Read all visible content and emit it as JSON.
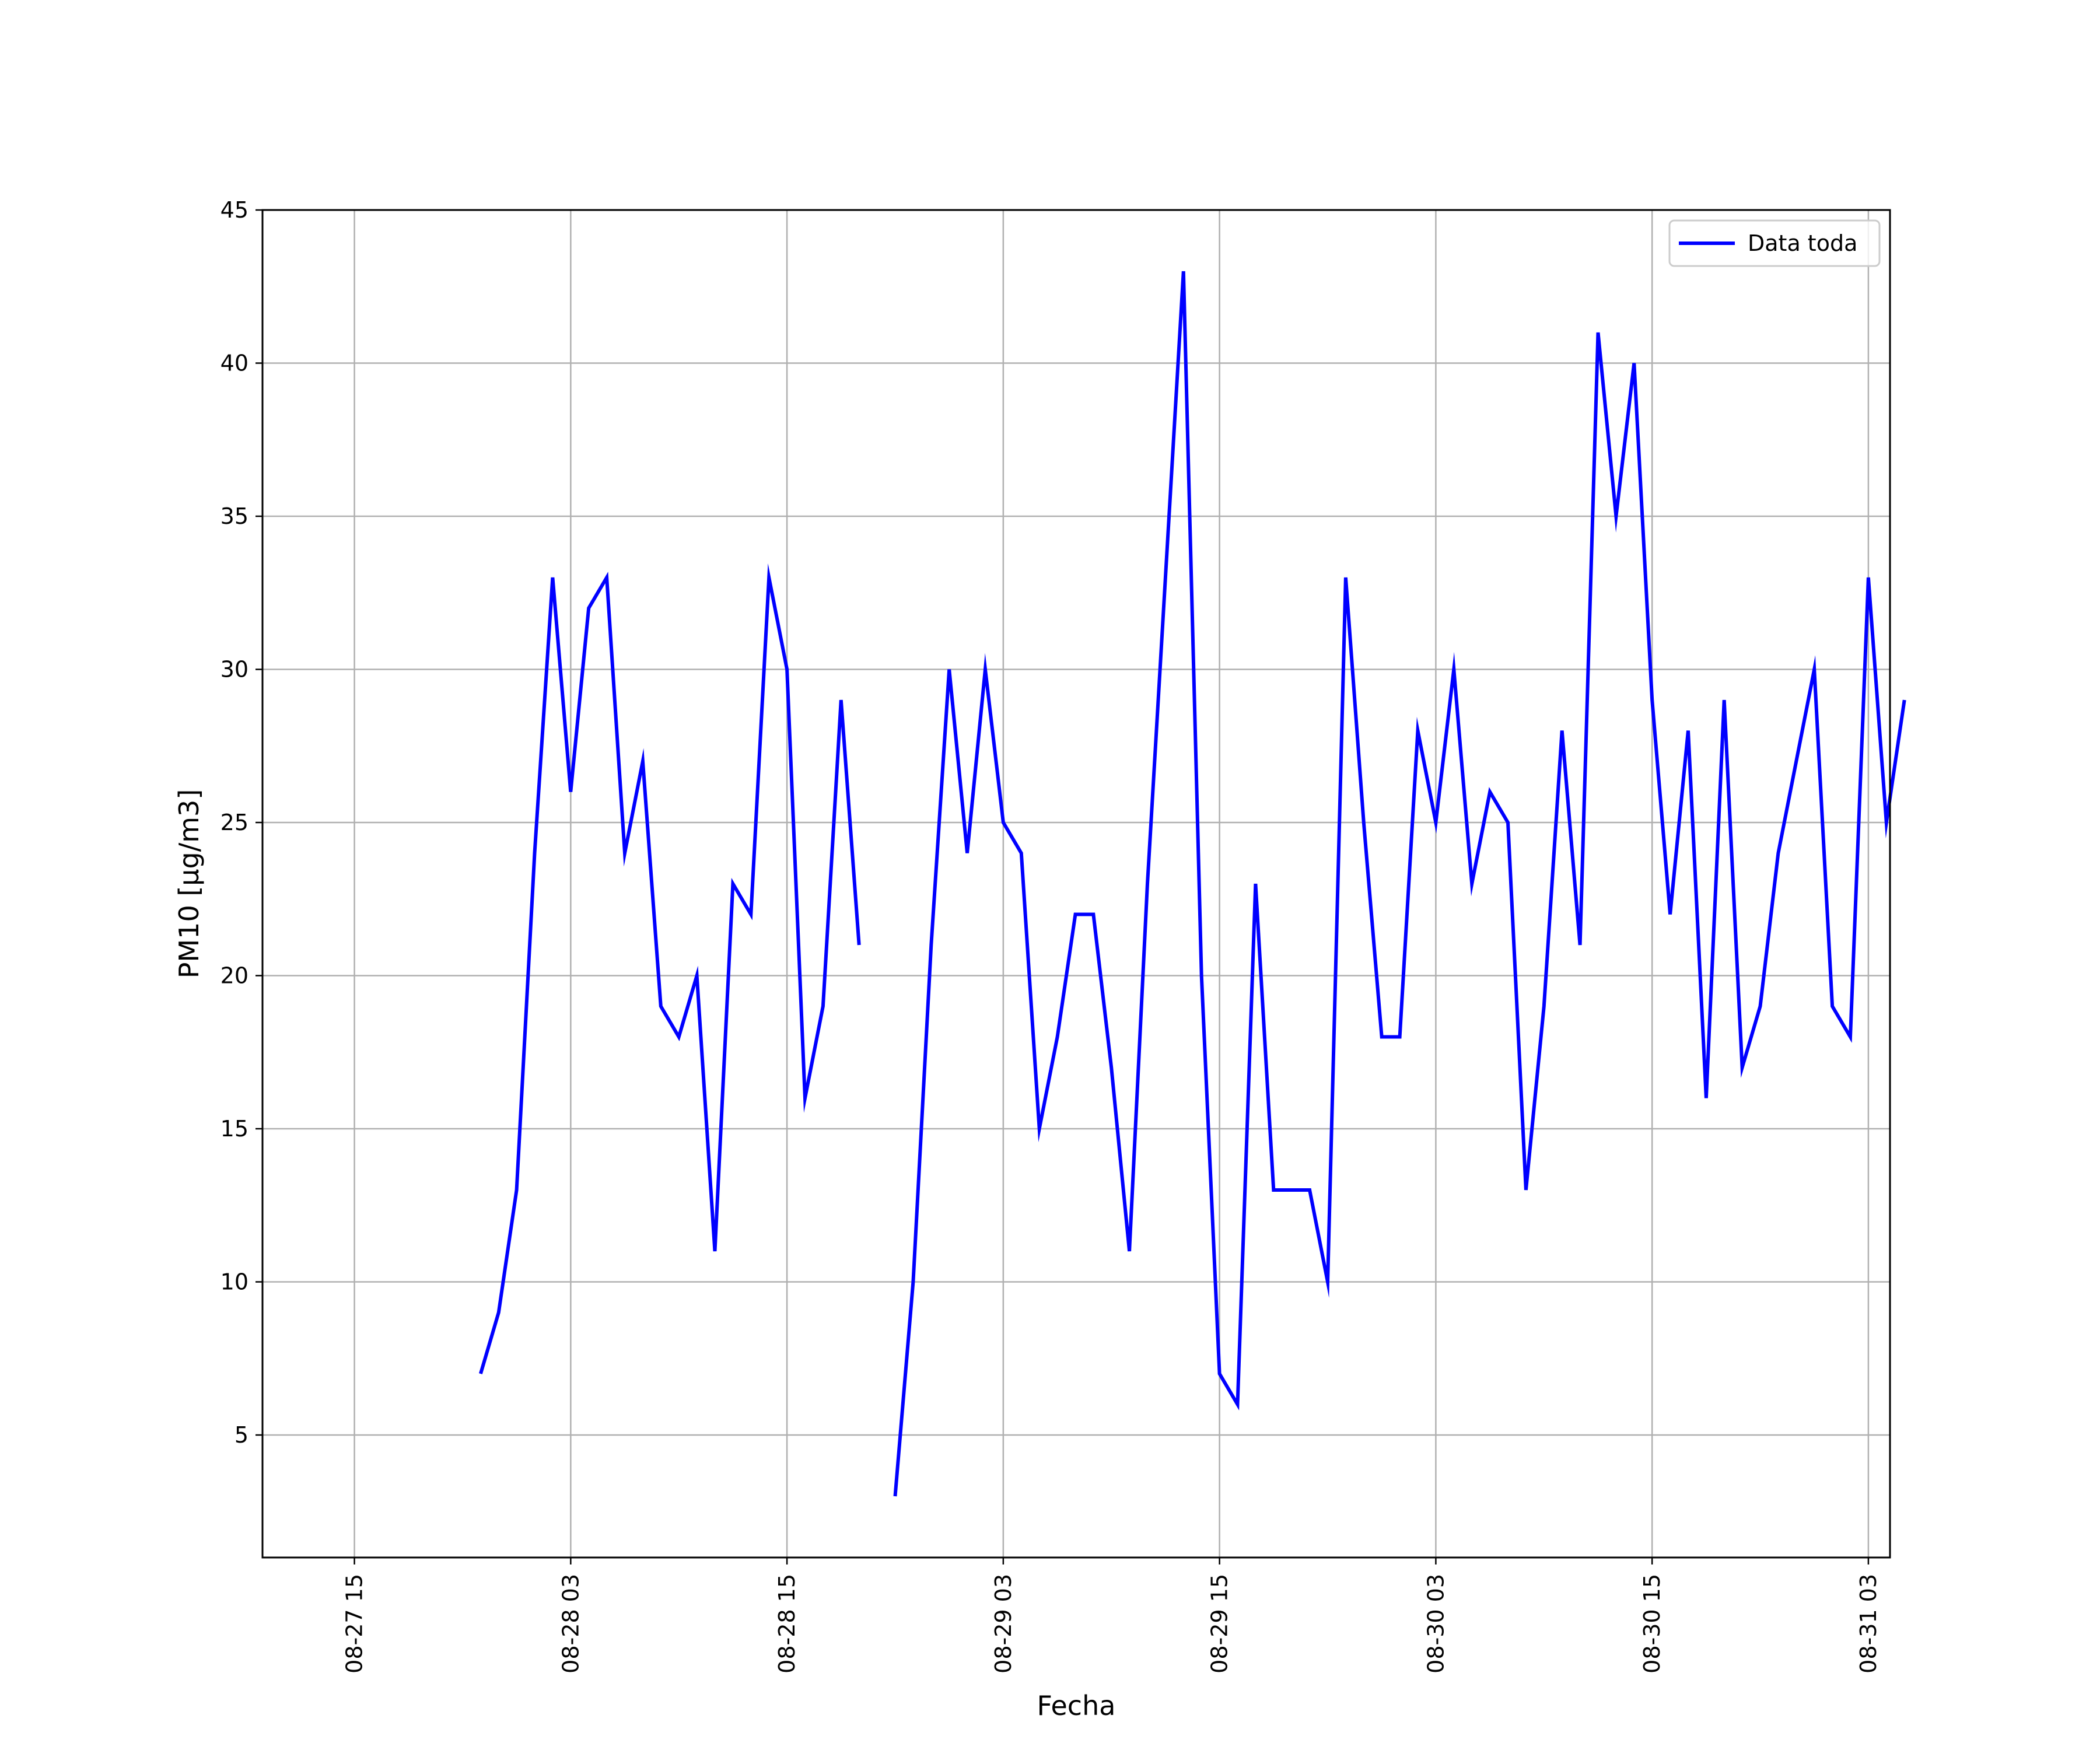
{
  "chart_data": {
    "type": "line",
    "title": "",
    "xlabel": "Fecha",
    "ylabel": "PM10 [μg/m3]",
    "x_tick_labels": [
      {
        "date": "2017-08-27T15:00",
        "label": "08-27 15"
      },
      {
        "date": "2017-08-28T03:00",
        "label": "08-28 03"
      },
      {
        "date": "2017-08-28T15:00",
        "label": "08-28 15"
      },
      {
        "date": "2017-08-29T03:00",
        "label": "08-29 03"
      },
      {
        "date": "2017-08-29T15:00",
        "label": "08-29 15"
      },
      {
        "date": "2017-08-30T03:00",
        "label": "08-30 03"
      },
      {
        "date": "2017-08-30T15:00",
        "label": "08-30 15"
      },
      {
        "date": "2017-08-31T03:00",
        "label": "08-31 03"
      }
    ],
    "xlim": [
      "2017-08-27T09:54",
      "2017-08-31T04:12"
    ],
    "ylim": [
      1.0,
      45.0
    ],
    "y_ticks": [
      5,
      10,
      15,
      20,
      25,
      30,
      35,
      40,
      45
    ],
    "grid": true,
    "legend_position": "top-right",
    "series": [
      {
        "name": "Data toda",
        "color": "#0000ff",
        "points": [
          [
            "2017-08-27T22:00",
            7
          ],
          [
            "2017-08-27T23:00",
            9
          ],
          [
            "2017-08-28T00:00",
            13
          ],
          [
            "2017-08-28T01:00",
            24
          ],
          [
            "2017-08-28T02:00",
            33
          ],
          [
            "2017-08-28T03:00",
            26
          ],
          [
            "2017-08-28T04:00",
            32
          ],
          [
            "2017-08-28T05:00",
            33
          ],
          [
            "2017-08-28T06:00",
            24
          ],
          [
            "2017-08-28T07:00",
            27
          ],
          [
            "2017-08-28T08:00",
            19
          ],
          [
            "2017-08-28T09:00",
            18
          ],
          [
            "2017-08-28T10:00",
            20
          ],
          [
            "2017-08-28T11:00",
            11
          ],
          [
            "2017-08-28T12:00",
            23
          ],
          [
            "2017-08-28T13:00",
            22
          ],
          [
            "2017-08-28T14:00",
            33
          ],
          [
            "2017-08-28T15:00",
            30
          ],
          [
            "2017-08-28T16:00",
            16
          ],
          [
            "2017-08-28T17:00",
            19
          ],
          [
            "2017-08-28T18:00",
            29
          ],
          [
            "2017-08-28T19:00",
            21
          ],
          null,
          [
            "2017-08-28T21:00",
            3
          ],
          [
            "2017-08-28T22:00",
            10
          ],
          [
            "2017-08-28T23:00",
            21
          ],
          [
            "2017-08-29T00:00",
            30
          ],
          [
            "2017-08-29T01:00",
            24
          ],
          [
            "2017-08-29T02:00",
            30
          ],
          [
            "2017-08-29T03:00",
            25
          ],
          [
            "2017-08-29T04:00",
            24
          ],
          [
            "2017-08-29T05:00",
            15
          ],
          [
            "2017-08-29T06:00",
            18
          ],
          [
            "2017-08-29T07:00",
            22
          ],
          [
            "2017-08-29T08:00",
            22
          ],
          [
            "2017-08-29T09:00",
            17
          ],
          [
            "2017-08-29T10:00",
            11
          ],
          [
            "2017-08-29T11:00",
            23
          ],
          [
            "2017-08-29T12:00",
            33
          ],
          [
            "2017-08-29T13:00",
            43
          ],
          [
            "2017-08-29T14:00",
            20
          ],
          [
            "2017-08-29T15:00",
            7
          ],
          [
            "2017-08-29T16:00",
            6
          ],
          [
            "2017-08-29T17:00",
            23
          ],
          [
            "2017-08-29T18:00",
            13
          ],
          [
            "2017-08-29T19:00",
            13
          ],
          [
            "2017-08-29T20:00",
            13
          ],
          [
            "2017-08-29T21:00",
            10
          ],
          [
            "2017-08-29T22:00",
            33
          ],
          [
            "2017-08-29T23:00",
            25
          ],
          [
            "2017-08-30T00:00",
            18
          ],
          [
            "2017-08-30T01:00",
            18
          ],
          [
            "2017-08-30T02:00",
            28
          ],
          [
            "2017-08-30T03:00",
            25
          ],
          [
            "2017-08-30T04:00",
            30
          ],
          [
            "2017-08-30T05:00",
            23
          ],
          [
            "2017-08-30T06:00",
            26
          ],
          [
            "2017-08-30T07:00",
            25
          ],
          [
            "2017-08-30T08:00",
            13
          ],
          [
            "2017-08-30T09:00",
            19
          ],
          [
            "2017-08-30T10:00",
            28
          ],
          [
            "2017-08-30T11:00",
            21
          ],
          [
            "2017-08-30T12:00",
            41
          ],
          [
            "2017-08-30T13:00",
            35
          ],
          [
            "2017-08-30T14:00",
            40
          ],
          [
            "2017-08-30T15:00",
            29
          ],
          [
            "2017-08-30T16:00",
            22
          ],
          [
            "2017-08-30T17:00",
            28
          ],
          [
            "2017-08-30T18:00",
            16
          ],
          [
            "2017-08-30T19:00",
            29
          ],
          [
            "2017-08-30T20:00",
            17
          ],
          [
            "2017-08-30T21:00",
            19
          ],
          [
            "2017-08-30T22:00",
            24
          ],
          [
            "2017-08-30T23:00",
            27
          ],
          [
            "2017-08-31T00:00",
            30
          ],
          [
            "2017-08-31T01:00",
            19
          ],
          [
            "2017-08-31T02:00",
            18
          ],
          [
            "2017-08-31T03:00",
            33
          ],
          [
            "2017-08-31T04:00",
            25
          ],
          [
            "2017-08-31T05:00",
            29
          ]
        ]
      }
    ]
  }
}
